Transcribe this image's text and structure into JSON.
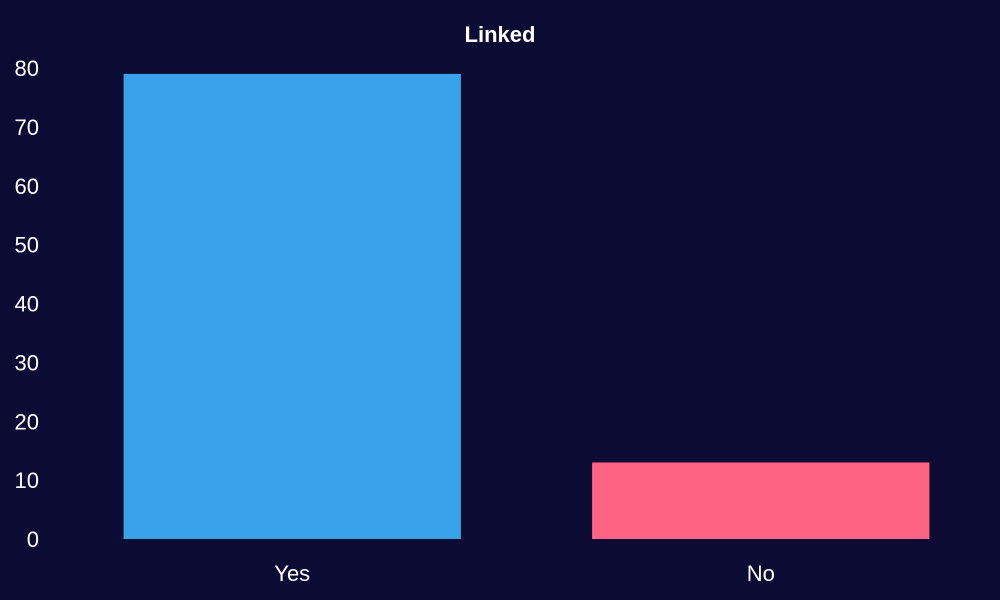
{
  "chart_data": {
    "type": "bar",
    "title": "Linked",
    "categories": [
      "Yes",
      "No"
    ],
    "values": [
      79,
      13
    ],
    "colors": [
      "#38a3eb",
      "#ff6384"
    ],
    "xlabel": "",
    "ylabel": "",
    "ylim": [
      0,
      80
    ],
    "yticks": [
      0,
      10,
      20,
      30,
      40,
      50,
      60,
      70,
      80
    ],
    "grid": false,
    "legend": "none"
  },
  "theme": {
    "background": "#0c0b33",
    "text": "#ffffff"
  }
}
